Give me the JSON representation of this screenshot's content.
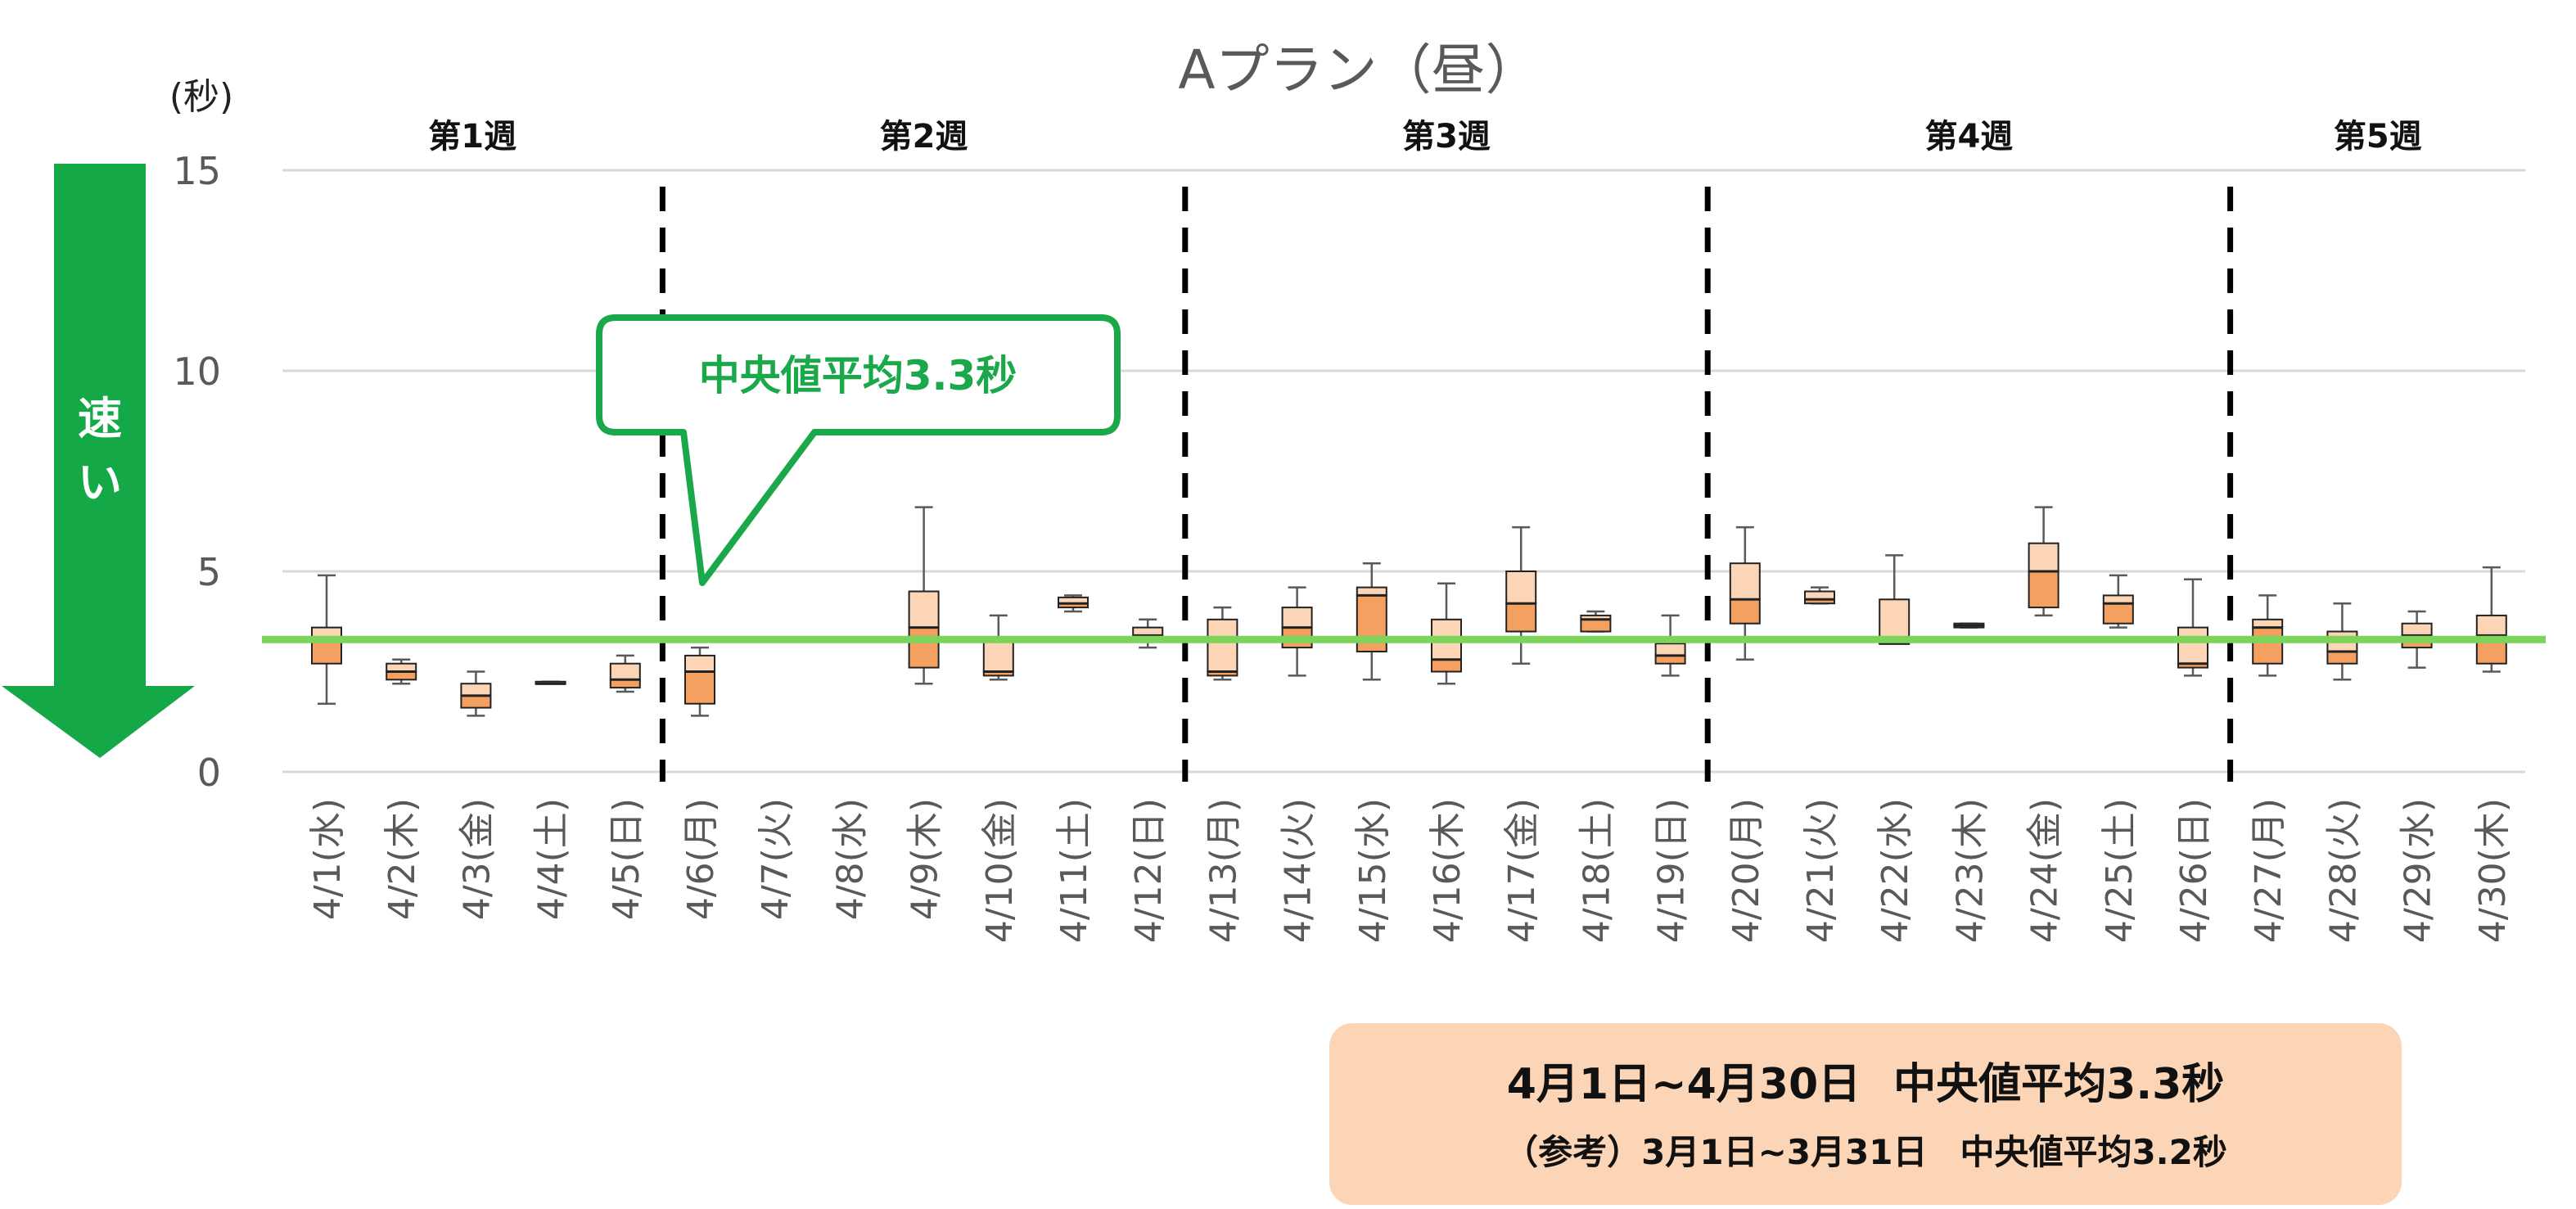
{
  "chart_data": {
    "type": "box",
    "title": "Aプラン（昼）",
    "ylabel": "(秒)",
    "ylim": [
      0,
      15
    ],
    "yticks": [
      0,
      5,
      10,
      15
    ],
    "grid": true,
    "speed_arrow_label": [
      "速",
      "い"
    ],
    "weeks": [
      {
        "label": "第1週",
        "start": 0,
        "end": 4
      },
      {
        "label": "第2週",
        "start": 5,
        "end": 11
      },
      {
        "label": "第3週",
        "start": 12,
        "end": 18
      },
      {
        "label": "第4週",
        "start": 19,
        "end": 25
      },
      {
        "label": "第5週",
        "start": 26,
        "end": 29
      }
    ],
    "categories": [
      "4/1(水)",
      "4/2(木)",
      "4/3(金)",
      "4/4(土)",
      "4/5(日)",
      "4/6(月)",
      "4/7(火)",
      "4/8(水)",
      "4/9(木)",
      "4/10(金)",
      "4/11(土)",
      "4/12(日)",
      "4/13(月)",
      "4/14(火)",
      "4/15(水)",
      "4/16(木)",
      "4/17(金)",
      "4/18(土)",
      "4/19(日)",
      "4/20(月)",
      "4/21(火)",
      "4/22(水)",
      "4/23(木)",
      "4/24(金)",
      "4/25(土)",
      "4/26(日)",
      "4/27(月)",
      "4/28(火)",
      "4/29(水)",
      "4/30(木)"
    ],
    "boxes": [
      {
        "min": 1.7,
        "q1": 2.7,
        "median": 3.3,
        "q3": 3.6,
        "max": 4.9
      },
      {
        "min": 2.2,
        "q1": 2.3,
        "median": 2.5,
        "q3": 2.7,
        "max": 2.8
      },
      {
        "min": 1.4,
        "q1": 1.6,
        "median": 1.9,
        "q3": 2.2,
        "max": 2.5
      },
      {
        "min": 2.2,
        "q1": 2.2,
        "median": 2.2,
        "q3": 2.25,
        "max": 2.25
      },
      {
        "min": 2.0,
        "q1": 2.1,
        "median": 2.3,
        "q3": 2.7,
        "max": 2.9
      },
      {
        "min": 1.4,
        "q1": 1.7,
        "median": 2.5,
        "q3": 2.9,
        "max": 3.1
      },
      null,
      null,
      {
        "min": 2.2,
        "q1": 2.6,
        "median": 3.6,
        "q3": 4.5,
        "max": 6.6
      },
      {
        "min": 2.3,
        "q1": 2.4,
        "median": 2.5,
        "q3": 3.3,
        "max": 3.9
      },
      {
        "min": 4.0,
        "q1": 4.1,
        "median": 4.2,
        "q3": 4.35,
        "max": 4.4
      },
      {
        "min": 3.1,
        "q1": 3.3,
        "median": 3.4,
        "q3": 3.6,
        "max": 3.8
      },
      {
        "min": 2.3,
        "q1": 2.4,
        "median": 2.5,
        "q3": 3.8,
        "max": 4.1
      },
      {
        "min": 2.4,
        "q1": 3.1,
        "median": 3.6,
        "q3": 4.1,
        "max": 4.6
      },
      {
        "min": 2.3,
        "q1": 3.0,
        "median": 4.4,
        "q3": 4.6,
        "max": 5.2
      },
      {
        "min": 2.2,
        "q1": 2.5,
        "median": 2.8,
        "q3": 3.8,
        "max": 4.7
      },
      {
        "min": 2.7,
        "q1": 3.5,
        "median": 4.2,
        "q3": 5.0,
        "max": 6.1
      },
      {
        "min": 3.5,
        "q1": 3.5,
        "median": 3.8,
        "q3": 3.9,
        "max": 4.0
      },
      {
        "min": 2.4,
        "q1": 2.7,
        "median": 2.9,
        "q3": 3.2,
        "max": 3.9
      },
      {
        "min": 2.8,
        "q1": 3.7,
        "median": 4.3,
        "q3": 5.2,
        "max": 6.1
      },
      {
        "min": 4.2,
        "q1": 4.2,
        "median": 4.3,
        "q3": 4.5,
        "max": 4.6
      },
      {
        "min": 3.2,
        "q1": 3.2,
        "median": 3.2,
        "q3": 4.3,
        "max": 5.4
      },
      {
        "min": 3.6,
        "q1": 3.6,
        "median": 3.65,
        "q3": 3.7,
        "max": 3.7
      },
      {
        "min": 3.9,
        "q1": 4.1,
        "median": 5.0,
        "q3": 5.7,
        "max": 6.6
      },
      {
        "min": 3.6,
        "q1": 3.7,
        "median": 4.2,
        "q3": 4.4,
        "max": 4.9
      },
      {
        "min": 2.4,
        "q1": 2.6,
        "median": 2.7,
        "q3": 3.6,
        "max": 4.8
      },
      {
        "min": 2.4,
        "q1": 2.7,
        "median": 3.6,
        "q3": 3.8,
        "max": 4.4
      },
      {
        "min": 2.3,
        "q1": 2.7,
        "median": 3.0,
        "q3": 3.5,
        "max": 4.2
      },
      {
        "min": 2.6,
        "q1": 3.1,
        "median": 3.4,
        "q3": 3.7,
        "max": 4.0
      },
      {
        "min": 2.5,
        "q1": 2.7,
        "median": 3.4,
        "q3": 3.9,
        "max": 5.1
      }
    ],
    "reference_line": {
      "value": 3.3,
      "label": "中央値平均3.3秒",
      "color": "#7dd45a"
    },
    "colors": {
      "box_upper": "#fbd5b5",
      "box_lower": "#f4a060",
      "accent_green": "#1aa84b"
    }
  },
  "summary": {
    "line1_period": "4月1日~4月30日",
    "line1_value": "中央値平均3.3秒",
    "line2_period": "（参考）3月1日~3月31日",
    "line2_value": "中央値平均3.2秒"
  }
}
